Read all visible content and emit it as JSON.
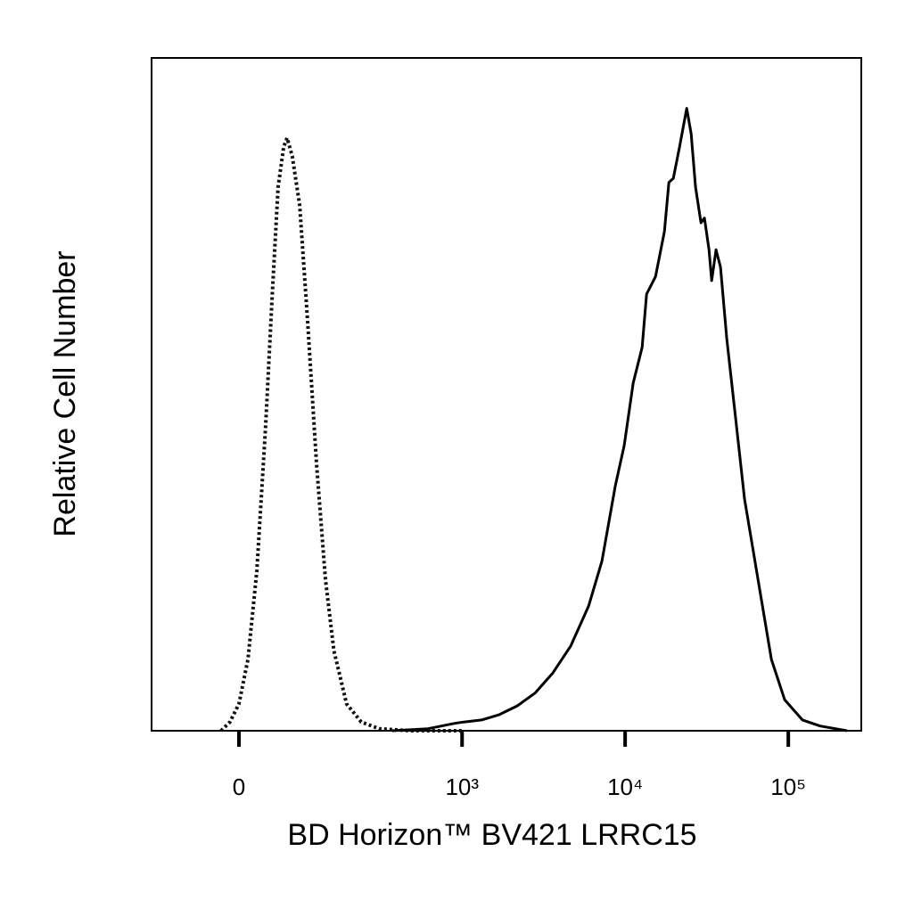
{
  "chart_data": {
    "type": "histogram-overlay",
    "x_title": "BD Horizon™ BV421 LRRC15",
    "y_title": "Relative Cell Number",
    "x_scale": "biexponential",
    "xlim": [
      -135,
      280000
    ],
    "ylim": [
      0,
      100
    ],
    "xticks": [
      0,
      {
        "value": 1000,
        "label": "10³"
      },
      {
        "value": 10000,
        "label": "10⁴"
      },
      {
        "value": 100000,
        "label": "10⁵"
      }
    ],
    "series": [
      {
        "color": "#111111",
        "line_style": "dotted",
        "x": [
          -22,
          -11,
          0,
          11,
          22,
          33,
          42,
          50,
          58,
          63,
          71,
          83,
          97,
          114,
          133,
          153,
          187,
          234,
          305,
          478,
          1023
        ],
        "values": [
          0,
          1.3,
          4.0,
          10.6,
          23.8,
          45.0,
          64.9,
          80.8,
          86.8,
          88.1,
          85.4,
          78.1,
          60.9,
          39.7,
          22.5,
          11.9,
          4.0,
          1.3,
          0.3,
          0,
          0
        ]
      },
      {
        "color": "#000000",
        "line_style": "solid",
        "x": [
          369,
          617,
          901,
          1023,
          1317,
          1694,
          2181,
          2805,
          3606,
          4639,
          5966,
          7210,
          8703,
          9873,
          11206,
          12711,
          13536,
          15351,
          17406,
          18533,
          19737,
          21552,
          23839,
          25379,
          27021,
          29145,
          30642,
          32637,
          33901,
          36086,
          38425,
          41951,
          47575,
          53974,
          61206,
          69428,
          78742,
          95082,
          122060,
          156864,
          228674
        ],
        "values": [
          0,
          0.3,
          1.1,
          1.3,
          1.6,
          2.4,
          3.7,
          5.6,
          8.6,
          12.6,
          18.5,
          25.2,
          36.4,
          42.4,
          51.7,
          57.0,
          64.9,
          67.5,
          74.2,
          81.5,
          82.1,
          86.8,
          92.5,
          88.7,
          80.8,
          75.5,
          76.2,
          71.5,
          66.9,
          71.5,
          68.9,
          58.3,
          46.4,
          34.4,
          26.5,
          18.5,
          10.6,
          4.6,
          1.6,
          0.7,
          0
        ]
      }
    ]
  }
}
